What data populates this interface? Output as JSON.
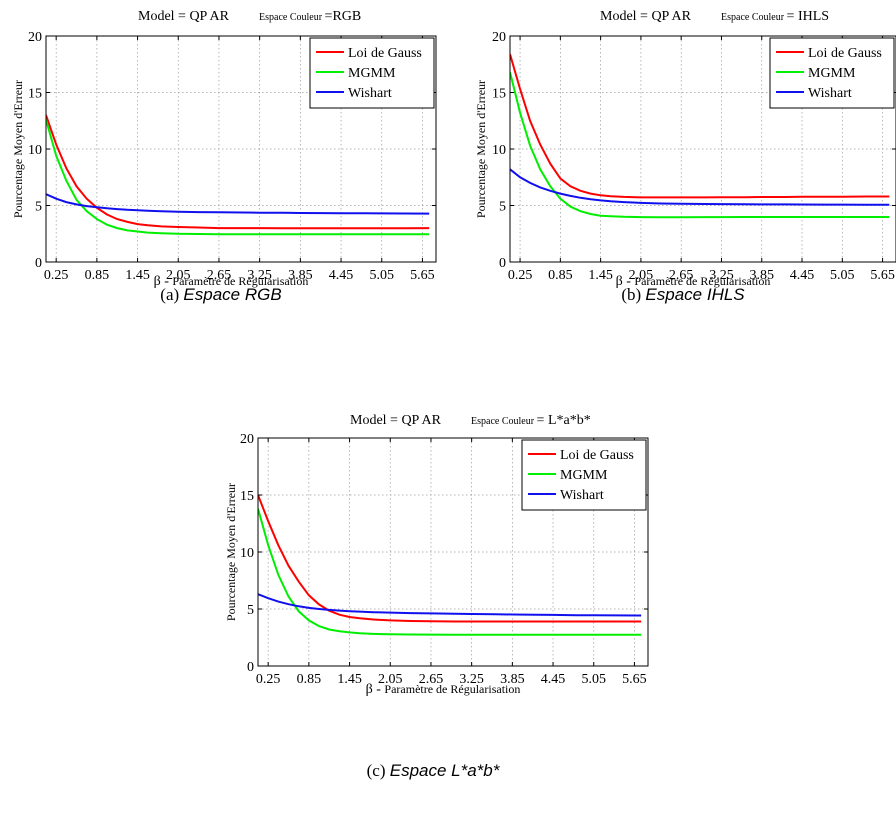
{
  "chart_data": [
    {
      "type": "line",
      "title": "Model = QP AR",
      "subtitle_label": "Espace Couleur",
      "subtitle_value": "=RGB",
      "xlabel_symbol": "β -",
      "xlabel": "Paramètre de Régularisation",
      "ylabel": "Pourcentage Moyen d'Erreur",
      "ylim": [
        0,
        20
      ],
      "xlim": [
        0.1,
        5.85
      ],
      "xticks": [
        "0.25",
        "0.85",
        "1.45",
        "2.05",
        "2.65",
        "3.25",
        "3.85",
        "4.45",
        "5.05",
        "5.65"
      ],
      "yticks": [
        "0",
        "5",
        "10",
        "15",
        "20"
      ],
      "grid": true,
      "legend_position": "top-right",
      "caption_prefix": "(a)",
      "caption": "Espace RGB",
      "x": [
        0.1,
        0.25,
        0.4,
        0.55,
        0.7,
        0.85,
        1.0,
        1.15,
        1.3,
        1.45,
        1.6,
        1.8,
        2.05,
        2.35,
        2.65,
        3.0,
        3.25,
        3.6,
        3.85,
        4.2,
        4.45,
        4.8,
        5.05,
        5.4,
        5.75
      ],
      "series": [
        {
          "name": "Loi de Gauss",
          "color": "#ff0000",
          "values": [
            13.0,
            10.4,
            8.3,
            6.7,
            5.6,
            4.8,
            4.2,
            3.8,
            3.55,
            3.35,
            3.25,
            3.15,
            3.1,
            3.05,
            3.0,
            3.0,
            3.0,
            2.98,
            2.98,
            2.98,
            2.98,
            2.98,
            2.98,
            2.98,
            3.0
          ]
        },
        {
          "name": "MGMM",
          "color": "#00ee00",
          "values": [
            12.6,
            9.4,
            7.2,
            5.5,
            4.5,
            3.8,
            3.3,
            3.0,
            2.8,
            2.7,
            2.6,
            2.55,
            2.5,
            2.48,
            2.45,
            2.45,
            2.45,
            2.45,
            2.45,
            2.45,
            2.45,
            2.45,
            2.45,
            2.45,
            2.45
          ]
        },
        {
          "name": "Wishart",
          "color": "#1010ee",
          "values": [
            6.0,
            5.6,
            5.3,
            5.1,
            4.95,
            4.85,
            4.75,
            4.68,
            4.62,
            4.58,
            4.54,
            4.5,
            4.45,
            4.42,
            4.4,
            4.38,
            4.36,
            4.35,
            4.34,
            4.33,
            4.32,
            4.31,
            4.3,
            4.29,
            4.28
          ]
        }
      ]
    },
    {
      "type": "line",
      "title": "Model = QP AR",
      "subtitle_label": "Espace Couleur",
      "subtitle_value": "= IHLS",
      "xlabel_symbol": "β -",
      "xlabel": "Paramètre de Régularisation",
      "ylabel": "Pourcentage Moyen d'Erreur",
      "ylim": [
        0,
        20
      ],
      "xlim": [
        0.1,
        5.85
      ],
      "xticks": [
        "0.25",
        "0.85",
        "1.45",
        "2.05",
        "2.65",
        "3.25",
        "3.85",
        "4.45",
        "5.05",
        "5.65"
      ],
      "yticks": [
        "0",
        "5",
        "10",
        "15",
        "20"
      ],
      "grid": true,
      "legend_position": "top-right",
      "caption_prefix": "(b)",
      "caption": "Espace IHLS",
      "x": [
        0.1,
        0.25,
        0.4,
        0.55,
        0.7,
        0.85,
        1.0,
        1.15,
        1.3,
        1.45,
        1.6,
        1.8,
        2.05,
        2.35,
        2.65,
        3.0,
        3.25,
        3.6,
        3.85,
        4.2,
        4.45,
        4.8,
        5.05,
        5.4,
        5.75
      ],
      "series": [
        {
          "name": "Loi de Gauss",
          "color": "#ff0000",
          "values": [
            18.4,
            15.3,
            12.5,
            10.4,
            8.7,
            7.4,
            6.7,
            6.3,
            6.05,
            5.9,
            5.82,
            5.76,
            5.72,
            5.72,
            5.72,
            5.72,
            5.73,
            5.73,
            5.75,
            5.75,
            5.77,
            5.78,
            5.78,
            5.8,
            5.8
          ]
        },
        {
          "name": "MGMM",
          "color": "#00ee00",
          "values": [
            16.8,
            13.2,
            10.3,
            8.2,
            6.7,
            5.6,
            4.9,
            4.5,
            4.25,
            4.1,
            4.05,
            4.0,
            3.97,
            3.96,
            3.96,
            3.97,
            3.97,
            3.98,
            3.98,
            3.98,
            3.98,
            3.98,
            3.98,
            3.98,
            3.98
          ]
        },
        {
          "name": "Wishart",
          "color": "#1010ee",
          "values": [
            8.2,
            7.5,
            7.0,
            6.6,
            6.3,
            6.05,
            5.85,
            5.68,
            5.55,
            5.45,
            5.37,
            5.3,
            5.23,
            5.18,
            5.15,
            5.13,
            5.12,
            5.11,
            5.1,
            5.1,
            5.09,
            5.08,
            5.08,
            5.07,
            5.07
          ]
        }
      ]
    },
    {
      "type": "line",
      "title": "Model = QP AR",
      "subtitle_label": "Espace Couleur",
      "subtitle_value": "= L*a*b*",
      "xlabel_symbol": "β -",
      "xlabel": "Paramètre de Régularisation",
      "ylabel": "Pourcentage Moyen d'Erreur",
      "ylim": [
        0,
        20
      ],
      "xlim": [
        0.1,
        5.85
      ],
      "xticks": [
        "0.25",
        "0.85",
        "1.45",
        "2.05",
        "2.65",
        "3.25",
        "3.85",
        "4.45",
        "5.05",
        "5.65"
      ],
      "yticks": [
        "0",
        "5",
        "10",
        "15",
        "20"
      ],
      "grid": true,
      "legend_position": "top-right",
      "caption_prefix": "(c)",
      "caption": "Espace L*a*b*",
      "x": [
        0.1,
        0.25,
        0.4,
        0.55,
        0.7,
        0.85,
        1.0,
        1.15,
        1.3,
        1.45,
        1.6,
        1.8,
        2.05,
        2.35,
        2.65,
        3.0,
        3.25,
        3.6,
        3.85,
        4.2,
        4.45,
        4.8,
        5.05,
        5.4,
        5.75
      ],
      "series": [
        {
          "name": "Loi de Gauss",
          "color": "#ff0000",
          "values": [
            15.0,
            12.7,
            10.6,
            8.8,
            7.4,
            6.2,
            5.4,
            4.85,
            4.5,
            4.3,
            4.18,
            4.08,
            4.0,
            3.95,
            3.92,
            3.9,
            3.9,
            3.9,
            3.9,
            3.9,
            3.9,
            3.9,
            3.9,
            3.9,
            3.9
          ]
        },
        {
          "name": "MGMM",
          "color": "#00ee00",
          "values": [
            13.8,
            10.6,
            8.0,
            6.1,
            4.8,
            4.0,
            3.5,
            3.2,
            3.05,
            2.95,
            2.88,
            2.82,
            2.78,
            2.76,
            2.75,
            2.74,
            2.74,
            2.74,
            2.74,
            2.74,
            2.74,
            2.74,
            2.74,
            2.74,
            2.74
          ]
        },
        {
          "name": "Wishart",
          "color": "#1010ee",
          "values": [
            6.3,
            5.95,
            5.65,
            5.42,
            5.24,
            5.1,
            5.0,
            4.92,
            4.86,
            4.81,
            4.77,
            4.72,
            4.68,
            4.64,
            4.61,
            4.58,
            4.56,
            4.54,
            4.52,
            4.5,
            4.48,
            4.46,
            4.45,
            4.44,
            4.43
          ]
        }
      ]
    }
  ]
}
